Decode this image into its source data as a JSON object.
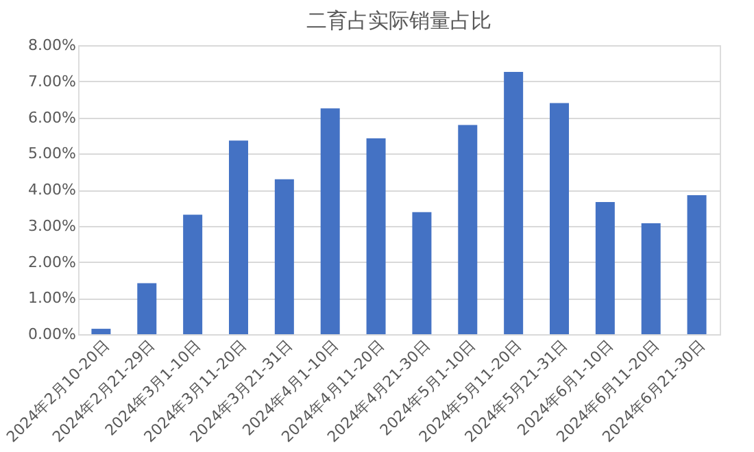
{
  "chart_data": {
    "type": "bar",
    "title": "二育占实际销量占比",
    "categories": [
      "2024年2月10-20日",
      "2024年2月21-29日",
      "2024年3月1-10日",
      "2024年3月11-20日",
      "2024年3月21-31日",
      "2024年4月1-10日",
      "2024年4月11-20日",
      "2024年4月21-30日",
      "2024年5月1-10日",
      "2024年5月11-20日",
      "2024年5月21-31日",
      "2024年6月1-10日",
      "2024年6月11-20日",
      "2024年6月21-30日"
    ],
    "values": [
      0.15,
      1.41,
      3.31,
      5.36,
      4.29,
      6.25,
      5.42,
      3.38,
      5.79,
      7.26,
      6.4,
      3.66,
      3.07,
      3.85
    ],
    "color": "#4472c4",
    "ylim": [
      0,
      8
    ],
    "yticks": [
      {
        "value": 0,
        "label": "0.00%"
      },
      {
        "value": 1,
        "label": "1.00%"
      },
      {
        "value": 2,
        "label": "2.00%"
      },
      {
        "value": 3,
        "label": "3.00%"
      },
      {
        "value": 4,
        "label": "4.00%"
      },
      {
        "value": 5,
        "label": "5.00%"
      },
      {
        "value": 6,
        "label": "6.00%"
      },
      {
        "value": 7,
        "label": "7.00%"
      },
      {
        "value": 8,
        "label": "8.00%"
      }
    ],
    "grid": "y"
  }
}
